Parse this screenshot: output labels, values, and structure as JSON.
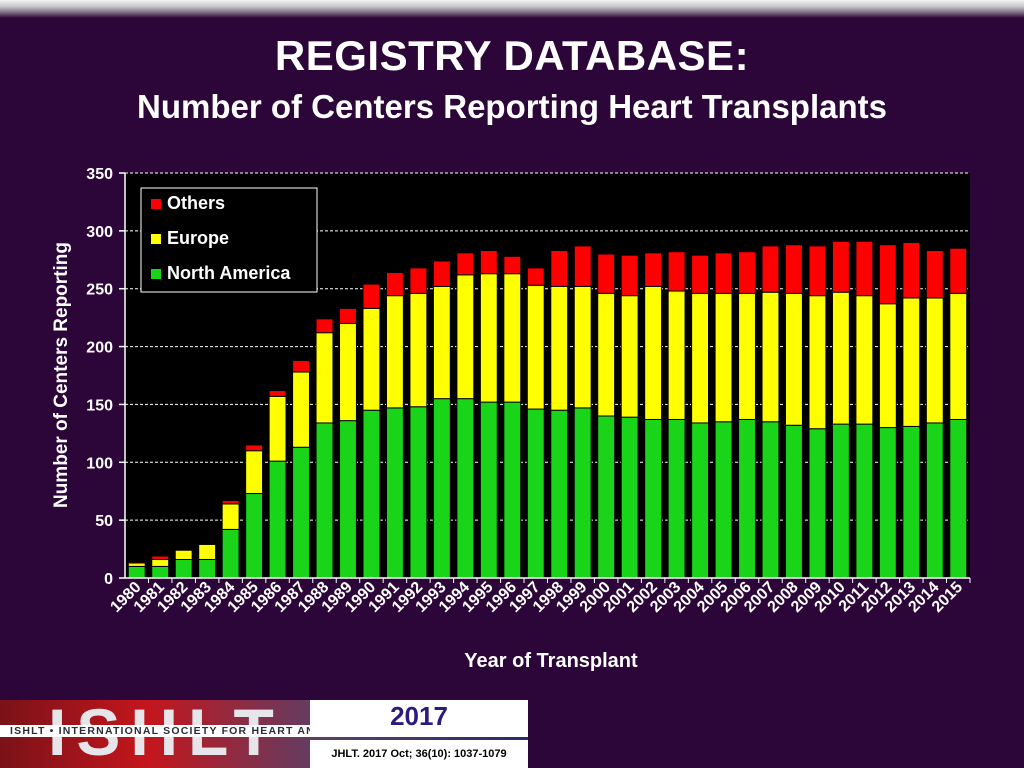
{
  "slide": {
    "title": "REGISTRY DATABASE:",
    "subtitle": "Number of Centers Reporting Heart Transplants"
  },
  "footer": {
    "logo_text": "ISHLT",
    "society_line": "ISHLT • INTERNATIONAL SOCIETY FOR HEART AND LUNG TRANSPLANTATION",
    "year": "2017",
    "citation": "JHLT. 2017 Oct; 36(10): 1037-1079"
  },
  "chart_data": {
    "type": "bar",
    "stacked": true,
    "title": "",
    "xlabel": "Year of Transplant",
    "ylabel": "Number of Centers Reporting",
    "ylim": [
      0,
      350
    ],
    "yticks": [
      0,
      50,
      100,
      150,
      200,
      250,
      300,
      350
    ],
    "grid": true,
    "legend_position": "top-left",
    "categories": [
      "1980",
      "1981",
      "1982",
      "1983",
      "1984",
      "1985",
      "1986",
      "1987",
      "1988",
      "1989",
      "1990",
      "1991",
      "1992",
      "1993",
      "1994",
      "1995",
      "1996",
      "1997",
      "1998",
      "1999",
      "2000",
      "2001",
      "2002",
      "2003",
      "2004",
      "2005",
      "2006",
      "2007",
      "2008",
      "2009",
      "2010",
      "2011",
      "2012",
      "2013",
      "2014",
      "2015"
    ],
    "series": [
      {
        "name": "North America",
        "color": "#19d419",
        "values": [
          10,
          10,
          16,
          16,
          42,
          73,
          101,
          113,
          134,
          136,
          145,
          147,
          148,
          155,
          155,
          152,
          152,
          146,
          145,
          147,
          140,
          139,
          137,
          137,
          134,
          135,
          137,
          135,
          132,
          129,
          133,
          133,
          130,
          131,
          134,
          137
        ]
      },
      {
        "name": "Europe",
        "color": "#ffff00",
        "values": [
          3,
          6,
          8,
          13,
          22,
          37,
          56,
          65,
          78,
          84,
          88,
          97,
          98,
          97,
          107,
          111,
          111,
          107,
          107,
          105,
          106,
          105,
          115,
          111,
          112,
          111,
          109,
          112,
          114,
          115,
          114,
          111,
          107,
          111,
          108,
          109
        ]
      },
      {
        "name": "Others",
        "color": "#ff0000",
        "values": [
          1,
          3,
          0,
          0,
          3,
          5,
          5,
          10,
          12,
          13,
          21,
          20,
          22,
          22,
          19,
          20,
          15,
          15,
          31,
          35,
          34,
          35,
          29,
          34,
          33,
          35,
          36,
          40,
          42,
          43,
          44,
          47,
          51,
          48,
          41,
          39
        ]
      }
    ],
    "legend_order": [
      "Others",
      "Europe",
      "North America"
    ]
  }
}
